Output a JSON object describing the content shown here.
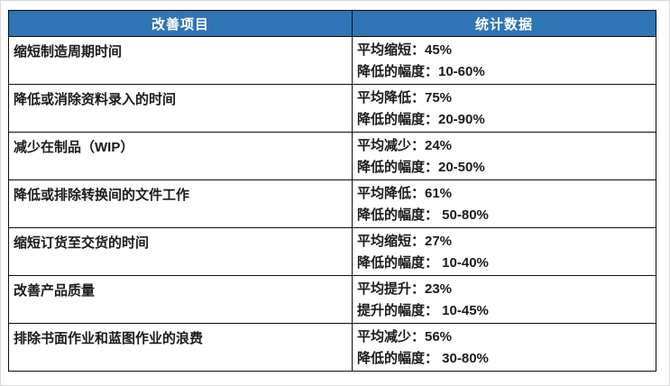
{
  "colors": {
    "header_background": "#2f75b5",
    "header_text": "#ffffff",
    "cell_border": "#0d0d0d",
    "cell_text": "#1a1a1a",
    "page_background": "#ffffff"
  },
  "table": {
    "headers": {
      "item": "改善项目",
      "stats": "统计数据"
    },
    "rows": [
      {
        "item": "缩短制造周期时间",
        "stat_line1": "平均缩短：45%",
        "stat_line2": "降低的幅度：10-60%"
      },
      {
        "item": "降低或消除资料录入的时间",
        "stat_line1": "平均降低：75%",
        "stat_line2": "降低的幅度：20-90%"
      },
      {
        "item": "减少在制品（WIP）",
        "stat_line1": "平均减少：24%",
        "stat_line2": "降低的幅度：20-50%"
      },
      {
        "item": "降低或排除转换间的文件工作",
        "stat_line1": "平均降低：61%",
        "stat_line2": "降低的幅度： 50-80%"
      },
      {
        "item": "缩短订货至交货的时间",
        "stat_line1": "平均缩短：27%",
        "stat_line2": "降低的幅度： 10-40%"
      },
      {
        "item": "改善产品质量",
        "stat_line1": "平均提升：23%",
        "stat_line2": "提升的幅度： 10-45%"
      },
      {
        "item": "排除书面作业和蓝图作业的浪费",
        "stat_line1": "平均减少：56%",
        "stat_line2": "降低的幅度： 30-80%"
      }
    ]
  }
}
